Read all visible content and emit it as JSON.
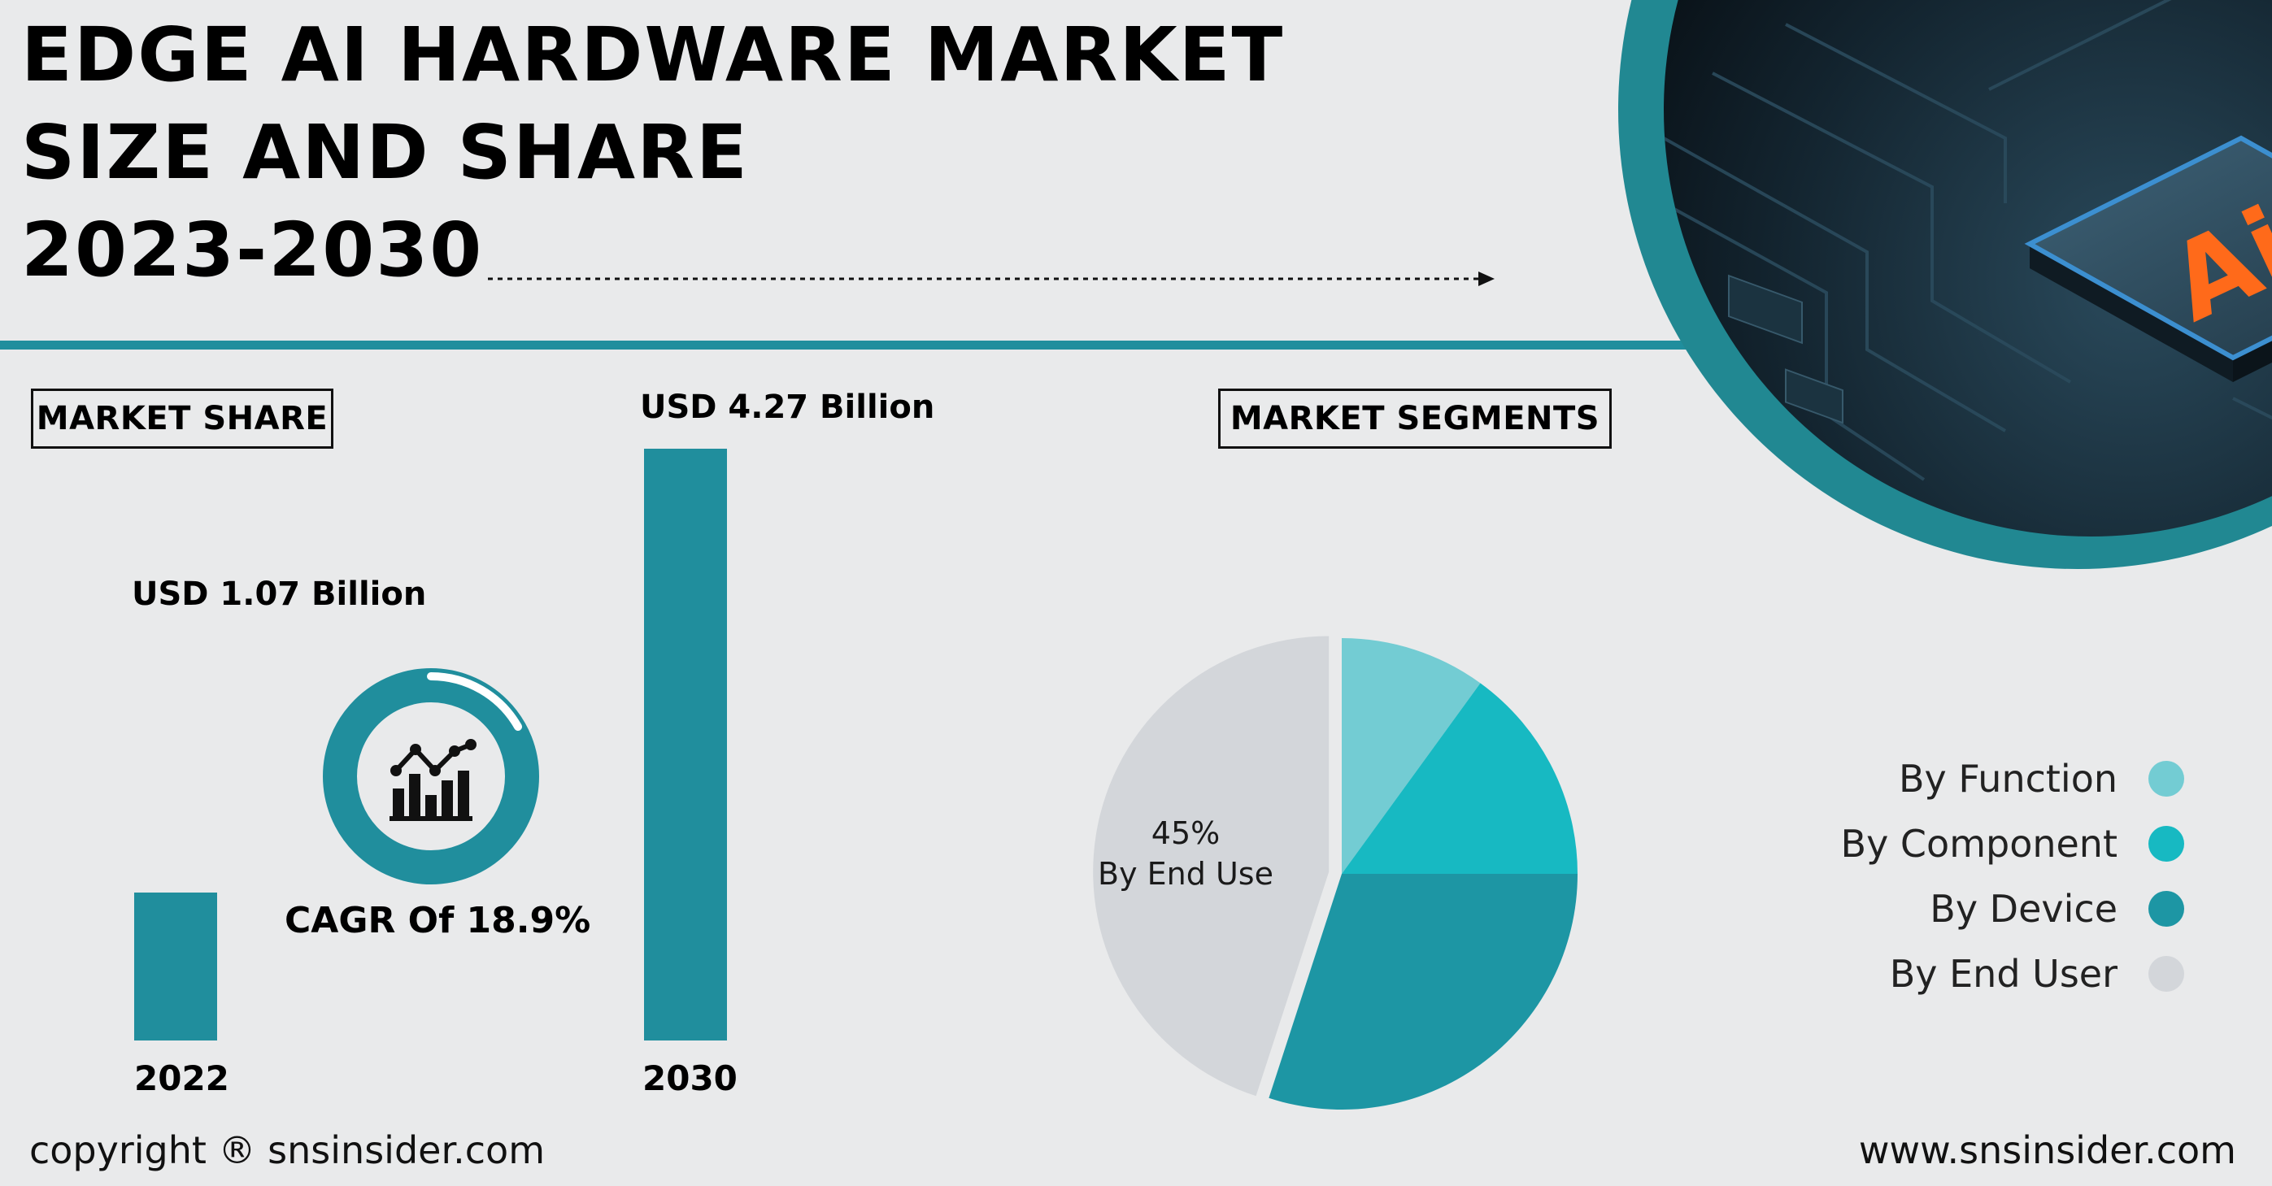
{
  "title": {
    "line1": "EDGE AI HARDWARE MARKET",
    "line2": "SIZE AND SHARE",
    "line3": "2023-2030"
  },
  "sections": {
    "market_share": "MARKET SHARE",
    "market_segments": "MARKET SEGMENTS"
  },
  "chip_image": {
    "label": "Ai"
  },
  "cagr": {
    "label": "CAGR Of 18.9%",
    "icon": "bar-chart-trend-icon"
  },
  "colors": {
    "teal": "#208e9d",
    "function": "#73ccd3",
    "component": "#17b9c2",
    "device": "#1d96a4",
    "end_user": "#d3d6da",
    "background": "#e9eaeb"
  },
  "chart_data": [
    {
      "type": "bar",
      "categories": [
        "2022",
        "2030"
      ],
      "values": [
        1.07,
        4.27
      ],
      "value_labels": [
        "USD 1.07 Billion",
        "USD 4.27 Billion"
      ],
      "unit": "USD Billion",
      "ylim": [
        0,
        4.27
      ],
      "grid": false
    },
    {
      "type": "pie",
      "categories": [
        "By Function",
        "By Component",
        "By Device",
        "By End User"
      ],
      "values": [
        10,
        15,
        30,
        45
      ],
      "slice_labels": {
        "pct": "45%",
        "name": "By End Use"
      },
      "exploded": "By End User",
      "legend_position": "right"
    }
  ],
  "footer": {
    "copyright": "copyright ® snsinsider.com",
    "website": "www.snsinsider.com"
  }
}
